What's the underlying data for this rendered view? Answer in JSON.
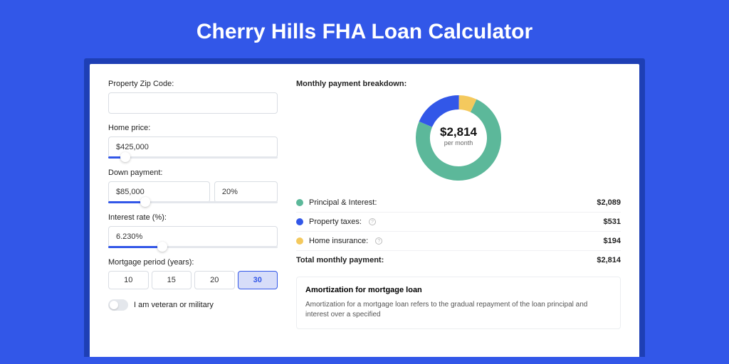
{
  "page": {
    "title": "Cherry Hills FHA Loan Calculator",
    "bg_color": "#3257e8",
    "frame_color": "#1e3fb5",
    "panel_bg": "#ffffff"
  },
  "form": {
    "zip": {
      "label": "Property Zip Code:",
      "value": ""
    },
    "home_price": {
      "label": "Home price:",
      "value": "$425,000",
      "slider_pct": 10
    },
    "down_payment": {
      "label": "Down payment:",
      "amount": "$85,000",
      "percent": "20%",
      "slider_pct": 22
    },
    "interest": {
      "label": "Interest rate (%):",
      "value": "6.230%",
      "slider_pct": 32
    },
    "period": {
      "label": "Mortgage period (years):",
      "options": [
        "10",
        "15",
        "20",
        "30"
      ],
      "selected": "30"
    },
    "veteran": {
      "label": "I am veteran or military",
      "on": false
    }
  },
  "breakdown": {
    "title": "Monthly payment breakdown:",
    "center_amount": "$2,814",
    "center_sub": "per month",
    "donut": {
      "diameter": 120,
      "thickness": 20,
      "segments": [
        {
          "key": "pi",
          "label": "Principal & Interest:",
          "value": "$2,089",
          "color": "#5cb89a",
          "pct": 74.2,
          "info": false
        },
        {
          "key": "tax",
          "label": "Property taxes:",
          "value": "$531",
          "color": "#3257e8",
          "pct": 18.9,
          "info": true
        },
        {
          "key": "ins",
          "label": "Home insurance:",
          "value": "$194",
          "color": "#f4c95d",
          "pct": 6.9,
          "info": true
        }
      ]
    },
    "total": {
      "label": "Total monthly payment:",
      "value": "$2,814"
    }
  },
  "amortization": {
    "title": "Amortization for mortgage loan",
    "text": "Amortization for a mortgage loan refers to the gradual repayment of the loan principal and interest over a specified"
  }
}
